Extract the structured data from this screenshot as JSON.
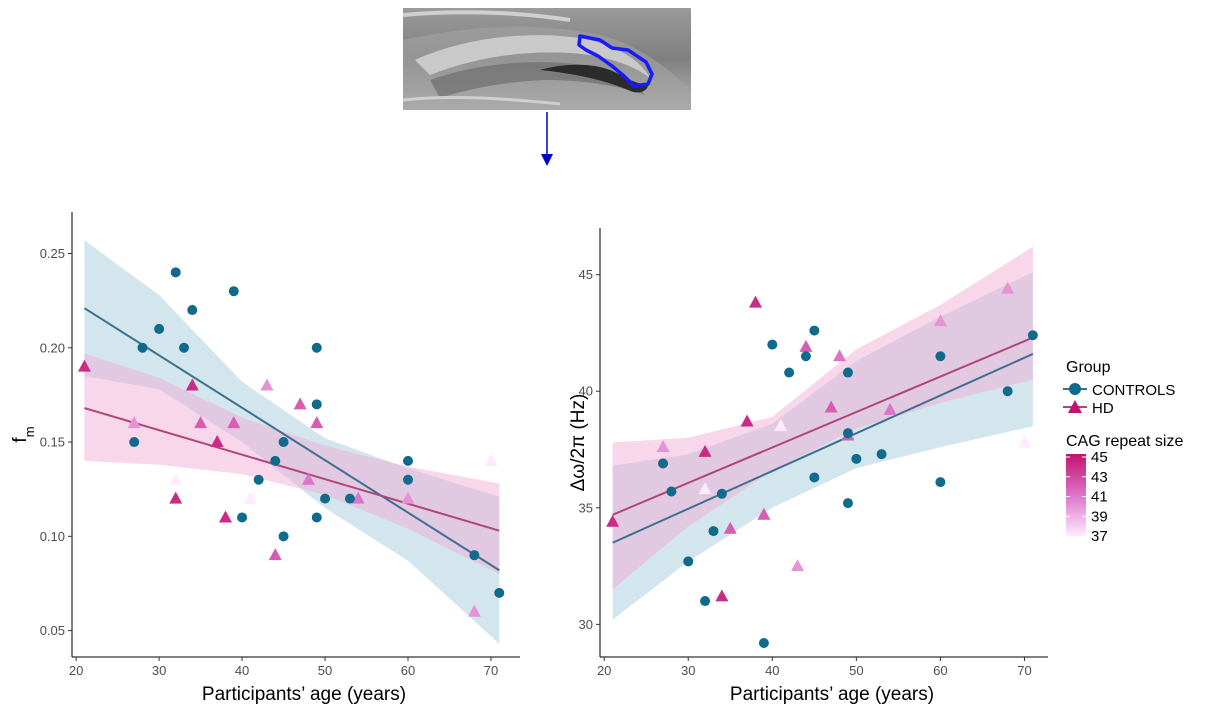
{
  "colors": {
    "controls": "#0f6a8c",
    "controls_line": "#3f6f90",
    "controls_band": "#9fc7d6",
    "hd_line": "#b0457a",
    "hd_band": "#f0a6d2",
    "arrow": "#0000cc",
    "roi_outline": "#1a1aff"
  },
  "inset": {
    "icon": "mri-brain-slice-with-roi-outline"
  },
  "legend": {
    "group_title": "Group",
    "groups": [
      "CONTROLS",
      "HD"
    ],
    "cag_title": "CAG repeat size",
    "cag_ticks": [
      "45",
      "43",
      "41",
      "39",
      "37"
    ],
    "cag_range": [
      37,
      45
    ]
  },
  "chart_data": [
    {
      "type": "scatter",
      "xlabel": "Participants’ age (years)",
      "ylabel": "f",
      "ylabel_sub": "m",
      "xlim": [
        19.5,
        73.5
      ],
      "ylim": [
        0.036,
        0.272
      ],
      "xticks": [
        20,
        30,
        40,
        50,
        60,
        70
      ],
      "yticks": [
        0.05,
        0.1,
        0.15,
        0.2,
        0.25
      ],
      "ytick_labels": [
        "0.05",
        "0.10",
        "0.15",
        "0.20",
        "0.25"
      ],
      "controls": {
        "x": [
          27,
          28,
          30,
          32,
          33,
          34,
          39,
          40,
          42,
          44,
          45,
          45,
          49,
          49,
          49,
          50,
          53,
          60,
          60,
          68,
          71
        ],
        "y": [
          0.15,
          0.2,
          0.21,
          0.24,
          0.2,
          0.22,
          0.23,
          0.11,
          0.13,
          0.14,
          0.1,
          0.15,
          0.2,
          0.17,
          0.11,
          0.12,
          0.12,
          0.13,
          0.14,
          0.09,
          0.07
        ],
        "fit": {
          "x": [
            21,
            71
          ],
          "y": [
            0.221,
            0.082
          ]
        },
        "band": {
          "x": [
            21,
            30,
            40,
            50,
            60,
            71
          ],
          "lower": [
            0.185,
            0.178,
            0.15,
            0.115,
            0.087,
            0.043
          ],
          "upper": [
            0.257,
            0.228,
            0.182,
            0.152,
            0.136,
            0.121
          ]
        }
      },
      "hd": {
        "x": [
          21,
          27,
          32,
          32,
          34,
          35,
          37,
          38,
          39,
          41,
          43,
          44,
          47,
          48,
          49,
          54,
          60,
          68,
          70
        ],
        "y": [
          0.19,
          0.16,
          0.12,
          0.13,
          0.18,
          0.16,
          0.15,
          0.11,
          0.16,
          0.12,
          0.18,
          0.09,
          0.17,
          0.13,
          0.16,
          0.12,
          0.12,
          0.06,
          0.14
        ],
        "cag": [
          44,
          40,
          44,
          37,
          44,
          42,
          44,
          44,
          42,
          37,
          40,
          42,
          42,
          41,
          42,
          41,
          40,
          40,
          37
        ],
        "fit": {
          "x": [
            21,
            71
          ],
          "y": [
            0.168,
            0.103
          ]
        },
        "band": {
          "x": [
            21,
            30,
            40,
            50,
            60,
            71
          ],
          "lower": [
            0.14,
            0.138,
            0.133,
            0.122,
            0.104,
            0.08
          ],
          "upper": [
            0.197,
            0.184,
            0.163,
            0.148,
            0.137,
            0.128
          ]
        }
      }
    },
    {
      "type": "scatter",
      "xlabel": "Participants’ age (years)",
      "ylabel": "Δω/2π (Hz)",
      "xlim": [
        19.5,
        72.8
      ],
      "ylim": [
        28.6,
        47.0
      ],
      "xticks": [
        20,
        30,
        40,
        50,
        60,
        70
      ],
      "yticks": [
        30,
        35,
        40,
        45
      ],
      "ytick_labels": [
        "30",
        "35",
        "40",
        "45"
      ],
      "controls": {
        "x": [
          27,
          28,
          30,
          32,
          33,
          34,
          39,
          40,
          42,
          44,
          45,
          45,
          49,
          49,
          49,
          50,
          53,
          60,
          60,
          68,
          71
        ],
        "y": [
          36.9,
          35.7,
          32.7,
          31.0,
          34.0,
          35.6,
          29.2,
          42.0,
          40.8,
          41.5,
          36.3,
          42.6,
          40.8,
          38.2,
          35.2,
          37.1,
          37.3,
          41.5,
          36.1,
          40.0,
          42.4
        ],
        "fit": {
          "x": [
            21,
            71
          ],
          "y": [
            33.5,
            41.6
          ]
        },
        "band": {
          "x": [
            21,
            30,
            40,
            50,
            60,
            71
          ],
          "lower": [
            30.2,
            32.7,
            35.0,
            36.7,
            37.6,
            38.5
          ],
          "upper": [
            36.8,
            37.3,
            38.6,
            41.3,
            43.2,
            45.1
          ]
        }
      },
      "hd": {
        "x": [
          21,
          27,
          32,
          32,
          34,
          35,
          37,
          38,
          39,
          41,
          43,
          44,
          47,
          48,
          49,
          54,
          60,
          68,
          70
        ],
        "y": [
          34.4,
          37.6,
          37.4,
          35.8,
          31.2,
          34.1,
          38.7,
          43.8,
          34.7,
          38.5,
          32.5,
          41.9,
          39.3,
          41.5,
          38.1,
          39.2,
          43.0,
          44.4,
          37.8
        ],
        "cag": [
          44,
          40,
          44,
          37,
          44,
          42,
          44,
          44,
          42,
          37,
          40,
          42,
          42,
          41,
          42,
          41,
          40,
          40,
          37
        ],
        "fit": {
          "x": [
            21,
            71
          ],
          "y": [
            34.7,
            42.3
          ]
        },
        "band": {
          "x": [
            21,
            30,
            40,
            50,
            60,
            71
          ],
          "lower": [
            31.5,
            34.2,
            36.6,
            38.4,
            39.5,
            40.5
          ],
          "upper": [
            37.8,
            38.0,
            38.9,
            41.8,
            43.7,
            46.2
          ]
        }
      }
    }
  ]
}
